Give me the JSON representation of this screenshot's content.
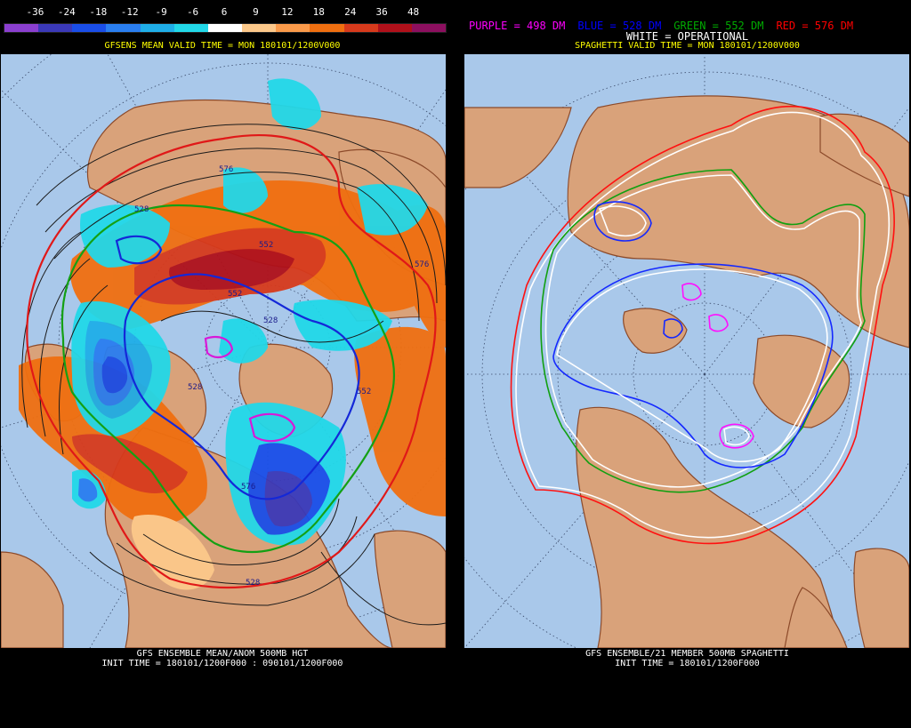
{
  "left": {
    "legend": {
      "labels": [
        "-36",
        "-24",
        "-18",
        "-12",
        "-9",
        "-6",
        "6",
        "9",
        "12",
        "18",
        "24",
        "36",
        "48"
      ],
      "colors": [
        "#8b3fcf",
        "#3b39b8",
        "#1a4ee8",
        "#2a7ef0",
        "#1faee8",
        "#22d8e8",
        "#ffffff",
        "#fcc88a",
        "#fa9a4a",
        "#f06f10",
        "#d73a1c",
        "#b0101a",
        "#8c0f5f"
      ]
    },
    "header": "GFSENS MEAN VALID TIME = MON 180101/1200V000",
    "contour_labels": [
      "528",
      "552",
      "528",
      "576",
      "552",
      "528",
      "576",
      "528",
      "552",
      "576"
    ],
    "footer_line1": "GFS ENSEMBLE MEAN/ANOM 500MB HGT",
    "footer_line2": "INIT TIME = 180101/1200F000 : 090101/1200F000"
  },
  "right": {
    "key": [
      {
        "text": "PURPLE = 498 DM",
        "color": "#ff00ff"
      },
      {
        "text": "BLUE = 528 DM",
        "color": "#0000ff"
      },
      {
        "text": "GREEN = 552 DM",
        "color": "#00aa00"
      },
      {
        "text": "RED = 576 DM",
        "color": "#ff0000"
      }
    ],
    "white_key": "WHITE = OPERATIONAL",
    "header": "SPAGHETTI VALID TIME = MON 180101/1200V000",
    "footer_line1": "GFS ENSEMBLE/21 MEMBER 500MB SPAGHETTI",
    "footer_line2": "INIT TIME = 180101/1200F000"
  },
  "colors": {
    "ocean": "#a9c8ea",
    "land": "#d9a27a",
    "coast": "#8c4a2a"
  }
}
